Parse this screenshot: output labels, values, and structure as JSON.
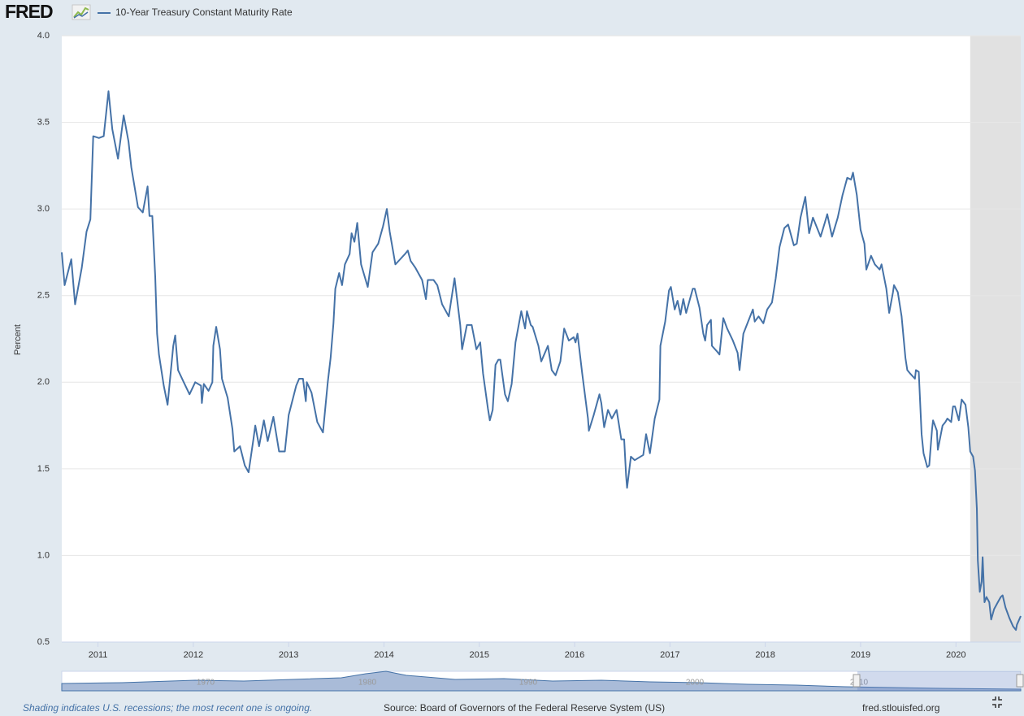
{
  "logo": "FRED",
  "footer": {
    "note": "Shading indicates U.S. recessions; the most recent one is ongoing.",
    "source": "Source: Board of Governors of the Federal Reserve System (US)",
    "site": "fred.stlouisfed.org"
  },
  "navigator_labels": [
    "1970",
    "1980",
    "1990",
    "2000",
    "2010"
  ],
  "chart_data": {
    "type": "line",
    "y_label": "Percent",
    "x": [
      2010.62,
      2010.65,
      2010.72,
      2010.76,
      2010.83,
      2010.88,
      2010.92,
      2010.95,
      2011.01,
      2011.06,
      2011.11,
      2011.15,
      2011.21,
      2011.27,
      2011.32,
      2011.35,
      2011.42,
      2011.47,
      2011.52,
      2011.54,
      2011.57,
      2011.6,
      2011.62,
      2011.64,
      2011.69,
      2011.73,
      2011.79,
      2011.81,
      2011.84,
      2011.9,
      2011.96,
      2012.02,
      2012.08,
      2012.09,
      2012.11,
      2012.16,
      2012.2,
      2012.21,
      2012.24,
      2012.28,
      2012.3,
      2012.36,
      2012.41,
      2012.43,
      2012.49,
      2012.54,
      2012.58,
      2012.63,
      2012.65,
      2012.69,
      2012.74,
      2012.78,
      2012.84,
      2012.9,
      2012.96,
      2013.0,
      2013.08,
      2013.11,
      2013.15,
      2013.18,
      2013.19,
      2013.24,
      2013.3,
      2013.36,
      2013.41,
      2013.44,
      2013.47,
      2013.49,
      2013.53,
      2013.56,
      2013.59,
      2013.64,
      2013.66,
      2013.69,
      2013.72,
      2013.76,
      2013.83,
      2013.88,
      2013.94,
      2013.99,
      2014.03,
      2014.06,
      2014.12,
      2014.17,
      2014.22,
      2014.25,
      2014.28,
      2014.33,
      2014.4,
      2014.44,
      2014.46,
      2014.52,
      2014.56,
      2014.61,
      2014.68,
      2014.74,
      2014.8,
      2014.82,
      2014.87,
      2014.92,
      2014.97,
      2015.01,
      2015.04,
      2015.09,
      2015.11,
      2015.14,
      2015.17,
      2015.2,
      2015.22,
      2015.27,
      2015.3,
      2015.34,
      2015.38,
      2015.44,
      2015.48,
      2015.5,
      2015.54,
      2015.56,
      2015.62,
      2015.65,
      2015.72,
      2015.76,
      2015.8,
      2015.85,
      2015.89,
      2015.94,
      2015.99,
      2016.01,
      2016.03,
      2016.08,
      2016.14,
      2016.15,
      2016.2,
      2016.26,
      2016.28,
      2016.31,
      2016.35,
      2016.39,
      2016.44,
      2016.49,
      2016.52,
      2016.54,
      2016.55,
      2016.59,
      2016.63,
      2016.72,
      2016.75,
      2016.79,
      2016.84,
      2016.89,
      2016.9,
      2016.95,
      2016.99,
      2017.01,
      2017.05,
      2017.08,
      2017.11,
      2017.14,
      2017.17,
      2017.24,
      2017.26,
      2017.31,
      2017.35,
      2017.37,
      2017.39,
      2017.43,
      2017.44,
      2017.49,
      2017.52,
      2017.56,
      2017.6,
      2017.66,
      2017.71,
      2017.73,
      2017.77,
      2017.82,
      2017.87,
      2017.89,
      2017.93,
      2017.98,
      2018.02,
      2018.07,
      2018.11,
      2018.15,
      2018.2,
      2018.24,
      2018.3,
      2018.33,
      2018.37,
      2018.42,
      2018.46,
      2018.5,
      2018.58,
      2018.63,
      2018.65,
      2018.7,
      2018.76,
      2018.81,
      2018.86,
      2018.9,
      2018.92,
      2018.96,
      2019.0,
      2019.04,
      2019.06,
      2019.11,
      2019.15,
      2019.2,
      2019.22,
      2019.27,
      2019.3,
      2019.34,
      2019.35,
      2019.39,
      2019.43,
      2019.47,
      2019.49,
      2019.52,
      2019.57,
      2019.58,
      2019.61,
      2019.64,
      2019.66,
      2019.7,
      2019.72,
      2019.75,
      2019.76,
      2019.8,
      2019.81,
      2019.86,
      2019.89,
      2019.91,
      2019.95,
      2019.97,
      2019.99,
      2020.03,
      2020.06,
      2020.1,
      2020.13,
      2020.15,
      2020.18,
      2020.2,
      2020.22,
      2020.23,
      2020.25,
      2020.27,
      2020.28,
      2020.3,
      2020.32,
      2020.35,
      2020.37,
      2020.4,
      2020.44,
      2020.47,
      2020.49,
      2020.52,
      2020.56,
      2020.6,
      2020.63,
      2020.64,
      2020.68
    ],
    "series": [
      {
        "name": "10-Year Treasury Constant Maturity Rate",
        "color": "#4572a7",
        "values": [
          2.75,
          2.56,
          2.71,
          2.45,
          2.66,
          2.87,
          2.94,
          3.42,
          3.41,
          3.42,
          3.68,
          3.46,
          3.29,
          3.54,
          3.39,
          3.24,
          3.01,
          2.98,
          3.13,
          2.96,
          2.96,
          2.61,
          2.28,
          2.16,
          1.98,
          1.87,
          2.21,
          2.27,
          2.07,
          2.0,
          1.93,
          2.0,
          1.98,
          1.88,
          1.99,
          1.95,
          2.0,
          2.21,
          2.32,
          2.19,
          2.02,
          1.91,
          1.73,
          1.6,
          1.63,
          1.52,
          1.48,
          1.67,
          1.75,
          1.63,
          1.78,
          1.66,
          1.8,
          1.6,
          1.6,
          1.81,
          1.98,
          2.02,
          2.02,
          1.89,
          2.0,
          1.94,
          1.77,
          1.71,
          2.0,
          2.14,
          2.34,
          2.54,
          2.63,
          2.56,
          2.68,
          2.74,
          2.86,
          2.81,
          2.92,
          2.68,
          2.55,
          2.75,
          2.8,
          2.9,
          3.0,
          2.87,
          2.68,
          2.71,
          2.74,
          2.76,
          2.7,
          2.66,
          2.59,
          2.48,
          2.59,
          2.59,
          2.56,
          2.45,
          2.38,
          2.6,
          2.33,
          2.19,
          2.33,
          2.33,
          2.19,
          2.23,
          2.05,
          1.85,
          1.78,
          1.84,
          2.1,
          2.13,
          2.13,
          1.93,
          1.89,
          1.99,
          2.23,
          2.41,
          2.31,
          2.41,
          2.33,
          2.32,
          2.21,
          2.12,
          2.21,
          2.07,
          2.04,
          2.12,
          2.31,
          2.24,
          2.26,
          2.23,
          2.28,
          2.05,
          1.79,
          1.72,
          1.81,
          1.93,
          1.88,
          1.74,
          1.84,
          1.79,
          1.84,
          1.67,
          1.67,
          1.46,
          1.39,
          1.57,
          1.55,
          1.58,
          1.7,
          1.59,
          1.79,
          1.9,
          2.21,
          2.35,
          2.53,
          2.55,
          2.42,
          2.47,
          2.39,
          2.48,
          2.4,
          2.54,
          2.54,
          2.43,
          2.28,
          2.24,
          2.33,
          2.36,
          2.21,
          2.18,
          2.16,
          2.37,
          2.31,
          2.24,
          2.17,
          2.07,
          2.28,
          2.35,
          2.42,
          2.35,
          2.38,
          2.34,
          2.42,
          2.46,
          2.6,
          2.78,
          2.89,
          2.91,
          2.79,
          2.8,
          2.95,
          3.07,
          2.86,
          2.95,
          2.84,
          2.93,
          2.97,
          2.84,
          2.95,
          3.08,
          3.18,
          3.17,
          3.21,
          3.08,
          2.88,
          2.8,
          2.65,
          2.73,
          2.68,
          2.65,
          2.68,
          2.54,
          2.4,
          2.52,
          2.56,
          2.52,
          2.38,
          2.14,
          2.07,
          2.05,
          2.02,
          2.07,
          2.06,
          1.7,
          1.59,
          1.51,
          1.52,
          1.73,
          1.78,
          1.72,
          1.61,
          1.75,
          1.77,
          1.79,
          1.77,
          1.86,
          1.86,
          1.78,
          1.9,
          1.87,
          1.74,
          1.6,
          1.57,
          1.49,
          1.27,
          0.97,
          0.79,
          0.85,
          0.99,
          0.73,
          0.76,
          0.73,
          0.63,
          0.69,
          0.73,
          0.76,
          0.77,
          0.7,
          0.64,
          0.59,
          0.57,
          0.6,
          0.65
        ]
      }
    ],
    "xlim": [
      2010.62,
      2020.68
    ],
    "xticks": [
      2011,
      2012,
      2013,
      2014,
      2015,
      2016,
      2017,
      2018,
      2019,
      2020
    ],
    "ylim": [
      0.5,
      4.0
    ],
    "yticks": [
      0.5,
      {
        "value": 1,
        "label": "1.0"
      },
      1.5,
      {
        "value": 2,
        "label": "2.0"
      },
      2.5,
      {
        "value": 3,
        "label": "3.0"
      },
      3.5,
      {
        "value": 4,
        "label": "4.0"
      }
    ],
    "recessions": [
      [
        2020.15,
        2020.68
      ]
    ],
    "grid": true
  }
}
